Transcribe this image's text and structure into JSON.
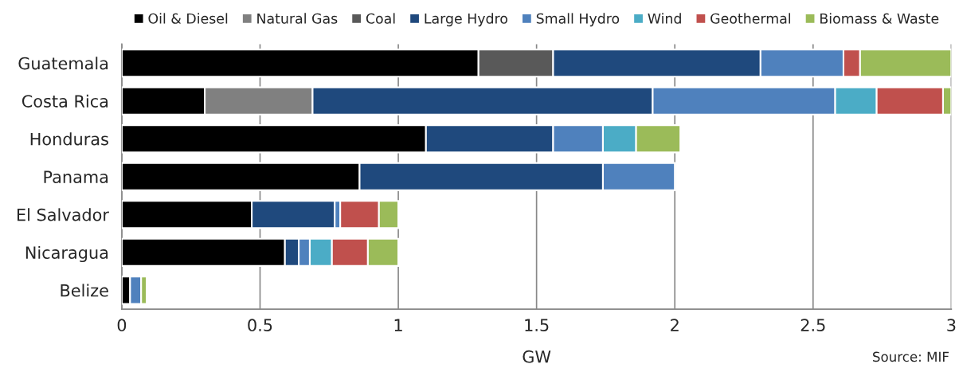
{
  "chart_data": {
    "type": "bar",
    "orientation": "horizontal",
    "stacked": true,
    "xlabel": "GW",
    "categories": [
      "Guatemala",
      "Costa Rica",
      "Honduras",
      "Panama",
      "El Salvador",
      "Nicaragua",
      "Belize"
    ],
    "series": [
      {
        "name": "Oil & Diesel",
        "color": "#000000",
        "values": [
          1.29,
          0.3,
          1.1,
          0.86,
          0.47,
          0.59,
          0.03
        ]
      },
      {
        "name": "Natural Gas",
        "color": "#808080",
        "values": [
          0,
          0.39,
          0,
          0,
          0,
          0,
          0
        ]
      },
      {
        "name": "Coal",
        "color": "#595959",
        "values": [
          0.27,
          0,
          0,
          0,
          0,
          0,
          0
        ]
      },
      {
        "name": "Large Hydro",
        "color": "#1f497d",
        "values": [
          0.75,
          1.23,
          0.46,
          0.88,
          0.3,
          0.05,
          0
        ]
      },
      {
        "name": "Small Hydro",
        "color": "#4f81bd",
        "values": [
          0.3,
          0.66,
          0.18,
          0.26,
          0.02,
          0.04,
          0.04
        ]
      },
      {
        "name": "Wind",
        "color": "#4bacc6",
        "values": [
          0,
          0.15,
          0.12,
          0,
          0,
          0.08,
          0
        ]
      },
      {
        "name": "Geothermal",
        "color": "#c0504d",
        "values": [
          0.06,
          0.24,
          0,
          0,
          0.14,
          0.13,
          0
        ]
      },
      {
        "name": "Biomass & Waste",
        "color": "#9bbb59",
        "values": [
          0.33,
          0.03,
          0.16,
          0,
          0.07,
          0.11,
          0.02
        ]
      }
    ],
    "xlim": [
      0,
      3
    ],
    "xticks": [
      0,
      0.5,
      1,
      1.5,
      2,
      2.5,
      3
    ],
    "grid": "x",
    "legend": "top",
    "annotations": [
      "Source: MIF"
    ]
  }
}
